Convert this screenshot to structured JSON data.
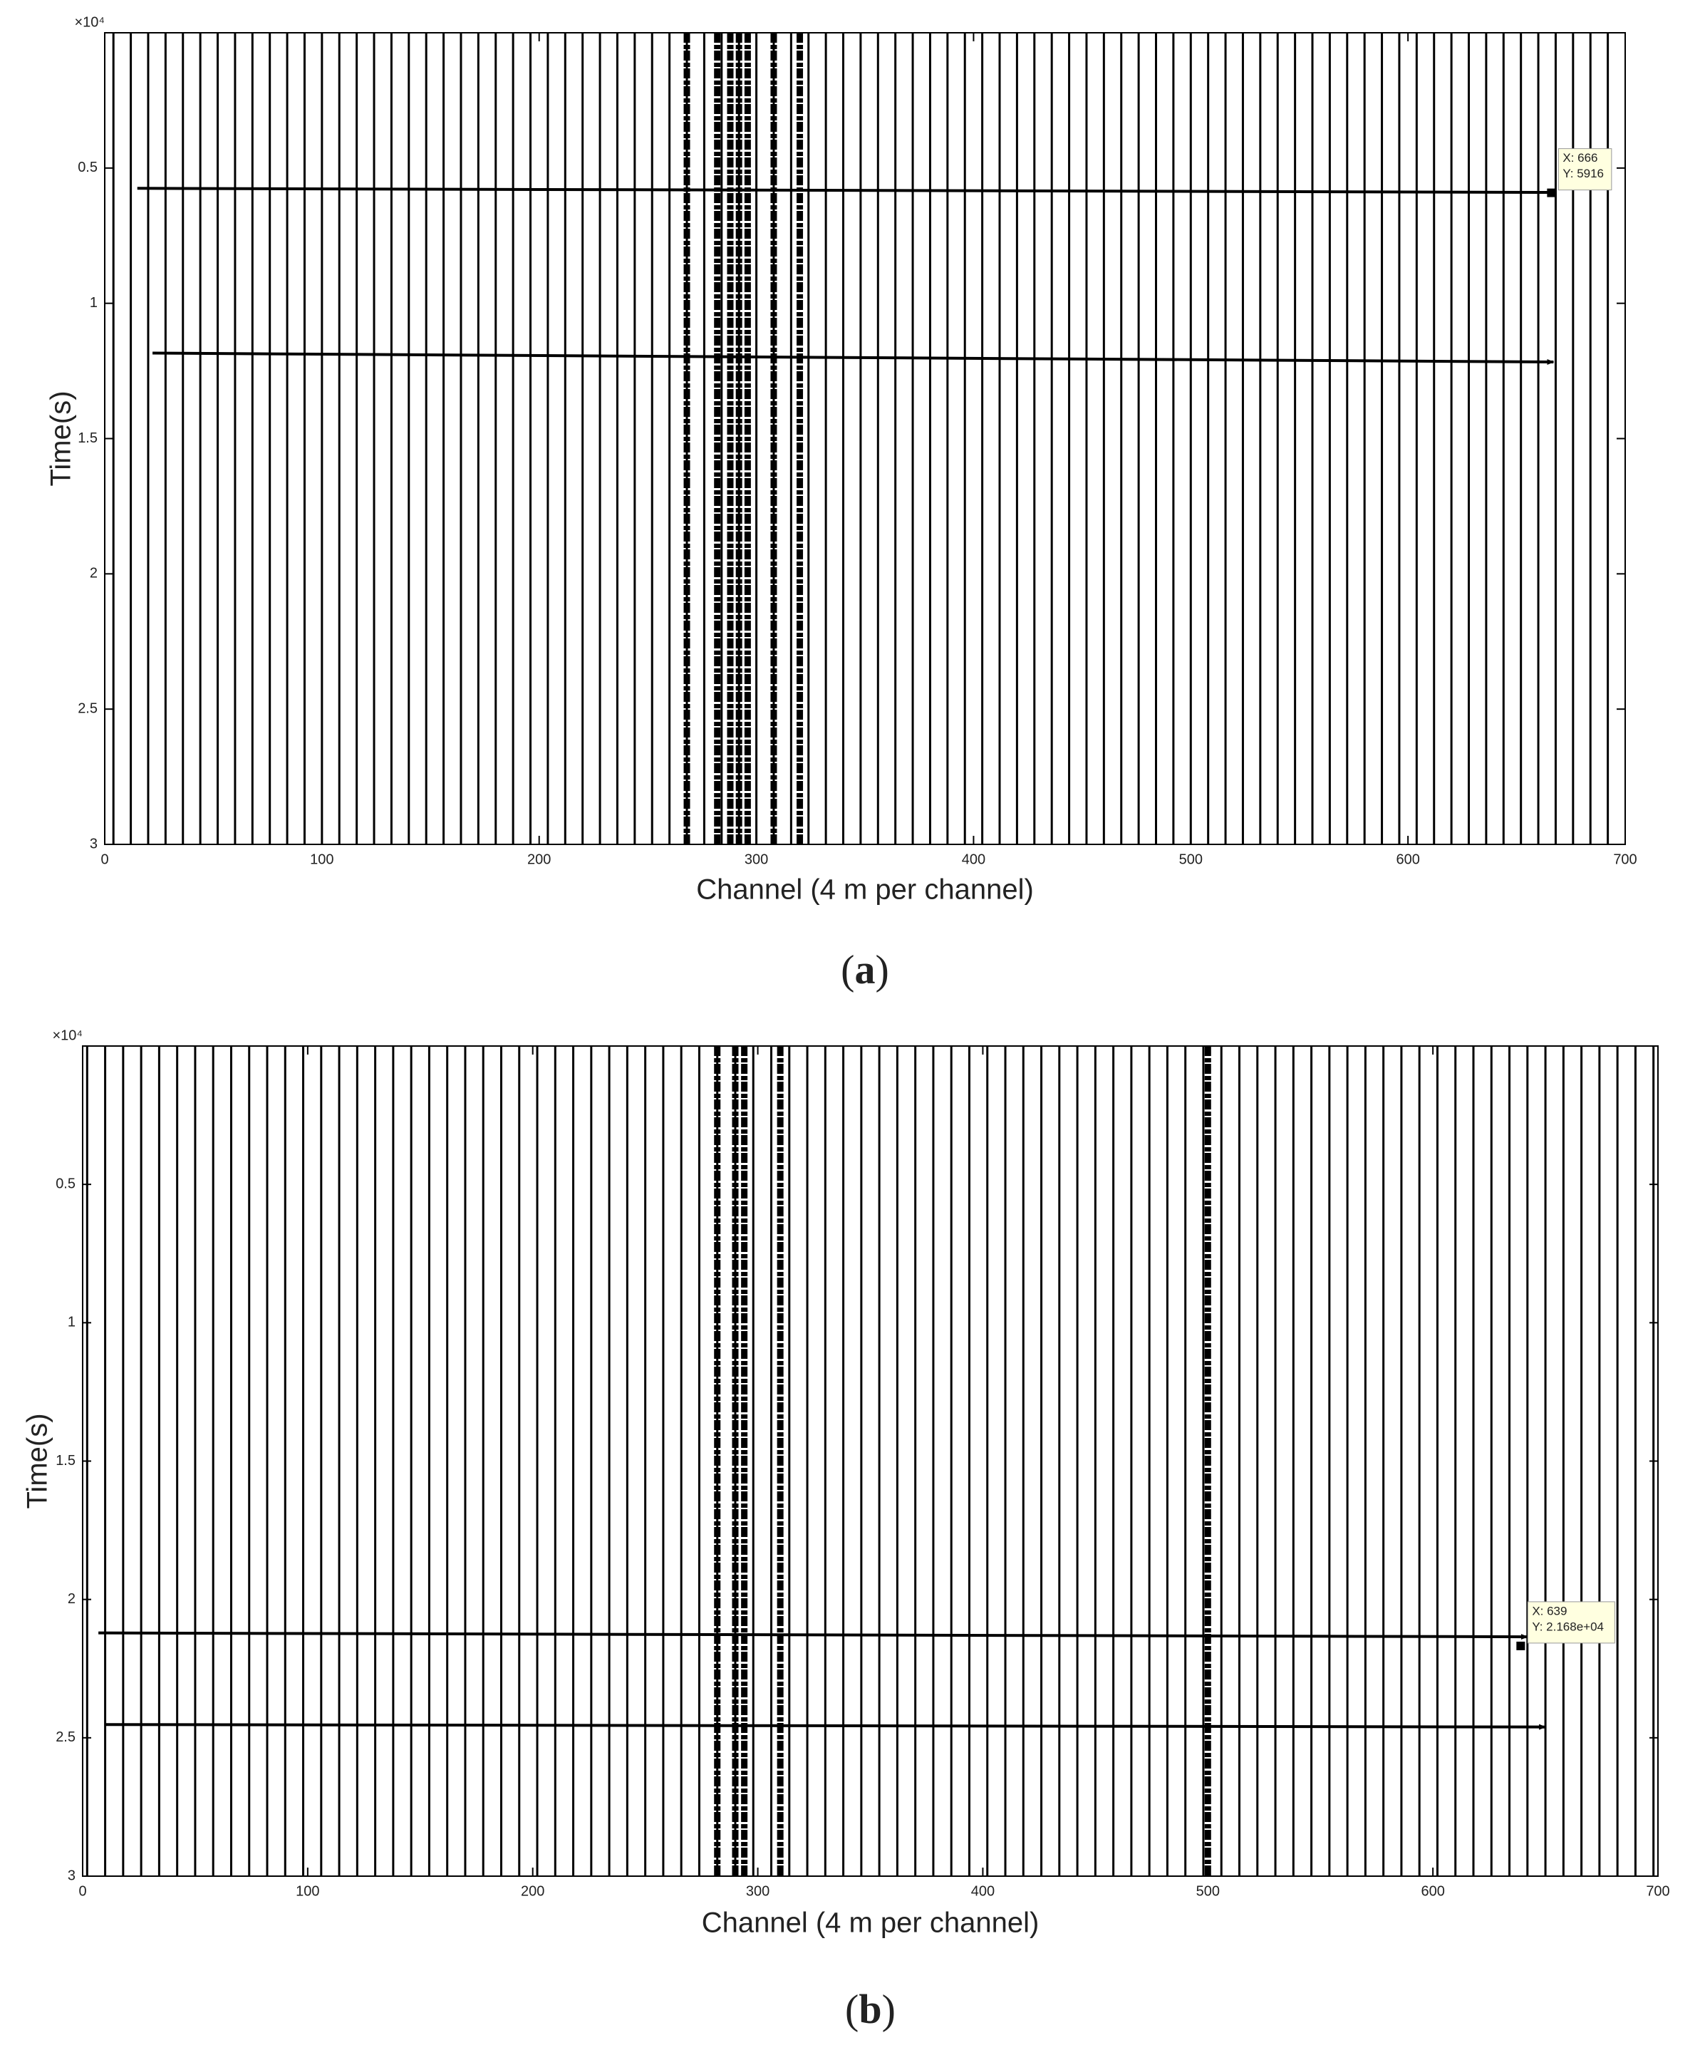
{
  "chart_data": [
    {
      "type": "wiggle",
      "caption": "a",
      "xlabel": "Channel (4 m per channel)",
      "ylabel": "Time(s)",
      "y_exponent": "×10⁴",
      "xlim": [
        0,
        700
      ],
      "xticks": [
        0,
        100,
        200,
        300,
        400,
        500,
        600,
        700
      ],
      "ylim": [
        0,
        3
      ],
      "yticks": [
        0.5,
        1,
        1.5,
        2,
        2.5,
        3
      ],
      "y_reversed": true,
      "trace_channels": [
        4,
        12,
        20,
        28,
        36,
        44,
        52,
        60,
        68,
        76,
        84,
        92,
        100,
        108,
        116,
        124,
        132,
        140,
        148,
        156,
        164,
        172,
        180,
        188,
        196,
        204,
        212,
        220,
        228,
        236,
        244,
        252,
        260,
        268,
        276,
        284,
        292,
        300,
        308,
        316,
        324,
        332,
        340,
        348,
        356,
        364,
        372,
        380,
        388,
        396,
        404,
        412,
        420,
        428,
        436,
        444,
        452,
        460,
        468,
        476,
        484,
        492,
        500,
        508,
        516,
        524,
        532,
        540,
        548,
        556,
        564,
        572,
        580,
        588,
        596,
        604,
        612,
        620,
        628,
        636,
        644,
        652,
        660,
        668,
        676,
        684,
        692
      ],
      "dense_channels": [
        268,
        282,
        288,
        292,
        296,
        308,
        320
      ],
      "arrows": [
        {
          "x": [
            15,
            667
          ],
          "y": [
            0.575,
            0.59
          ]
        },
        {
          "x": [
            22,
            667
          ],
          "y": [
            1.184,
            1.217
          ]
        }
      ],
      "datatip": {
        "x": 666,
        "y": 0.5916,
        "labels": [
          "X: 666",
          "Y: 5916"
        ]
      }
    },
    {
      "type": "wiggle",
      "caption": "b",
      "xlabel": "Channel (4 m per channel)",
      "ylabel": "Time(s)",
      "y_exponent": "×10⁴",
      "xlim": [
        0,
        700
      ],
      "xticks": [
        0,
        100,
        200,
        300,
        400,
        500,
        600,
        700
      ],
      "ylim": [
        0,
        3
      ],
      "yticks": [
        0.5,
        1,
        1.5,
        2,
        2.5,
        3
      ],
      "y_reversed": true,
      "trace_channels": [
        2,
        10,
        18,
        26,
        34,
        42,
        50,
        58,
        66,
        74,
        82,
        90,
        98,
        106,
        114,
        122,
        130,
        138,
        146,
        154,
        162,
        170,
        178,
        186,
        194,
        202,
        210,
        218,
        226,
        234,
        242,
        250,
        258,
        266,
        274,
        282,
        290,
        298,
        306,
        314,
        322,
        330,
        338,
        346,
        354,
        362,
        370,
        378,
        386,
        394,
        402,
        410,
        418,
        426,
        434,
        442,
        450,
        458,
        466,
        474,
        482,
        490,
        498,
        506,
        514,
        522,
        530,
        538,
        546,
        554,
        562,
        570,
        578,
        586,
        594,
        602,
        610,
        618,
        626,
        634,
        642,
        650,
        658,
        666,
        674,
        682,
        690,
        698
      ],
      "dense_channels": [
        282,
        290,
        294,
        310,
        500
      ],
      "arrows": [
        {
          "x": [
            7,
            642
          ],
          "y": [
            2.121,
            2.135
          ]
        },
        {
          "x": [
            10,
            650
          ],
          "y": [
            2.452,
            2.461
          ]
        }
      ],
      "datatip": {
        "x": 639,
        "y": 2.168,
        "labels": [
          "X: 639",
          "Y: 2.168e+04"
        ]
      }
    }
  ]
}
